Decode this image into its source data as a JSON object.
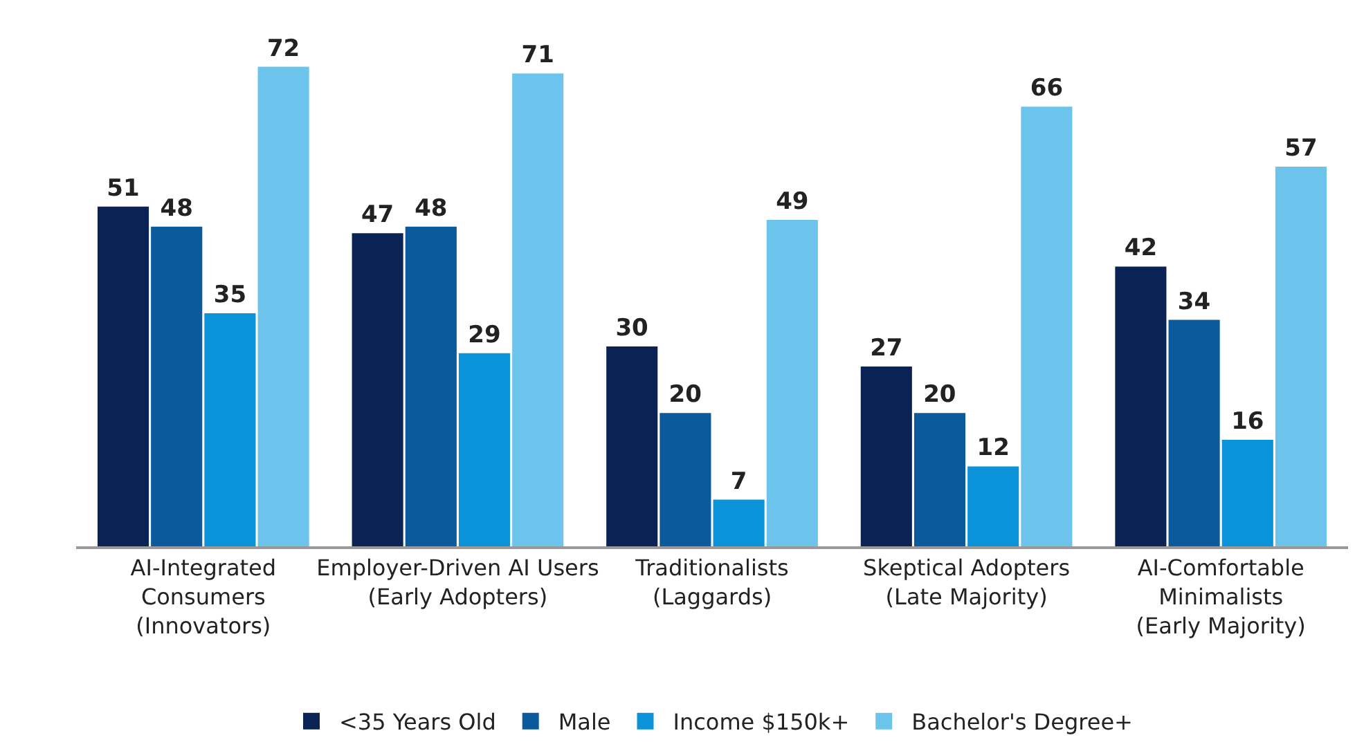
{
  "chart_data": {
    "type": "bar",
    "categories": [
      "AI-Integrated\nConsumers\n(Innovators)",
      "Employer-Driven AI Users\n(Early Adopters)",
      "Traditionalists\n(Laggards)",
      "Skeptical Adopters\n(Late Majority)",
      "AI-Comfortable\nMinimalists\n(Early Majority)"
    ],
    "series": [
      {
        "name": "<35 Years Old",
        "color": "#0b2254",
        "values": [
          51,
          47,
          30,
          27,
          42
        ]
      },
      {
        "name": "Male",
        "color": "#0b5a9c",
        "values": [
          48,
          48,
          20,
          20,
          34
        ]
      },
      {
        "name": "Income $150k+",
        "color": "#0a93d8",
        "values": [
          35,
          29,
          7,
          12,
          16
        ]
      },
      {
        "name": "Bachelor's Degree+",
        "color": "#6cc3ec",
        "values": [
          72,
          71,
          49,
          66,
          57
        ]
      }
    ],
    "data_labels": true,
    "legend": "bottom"
  }
}
